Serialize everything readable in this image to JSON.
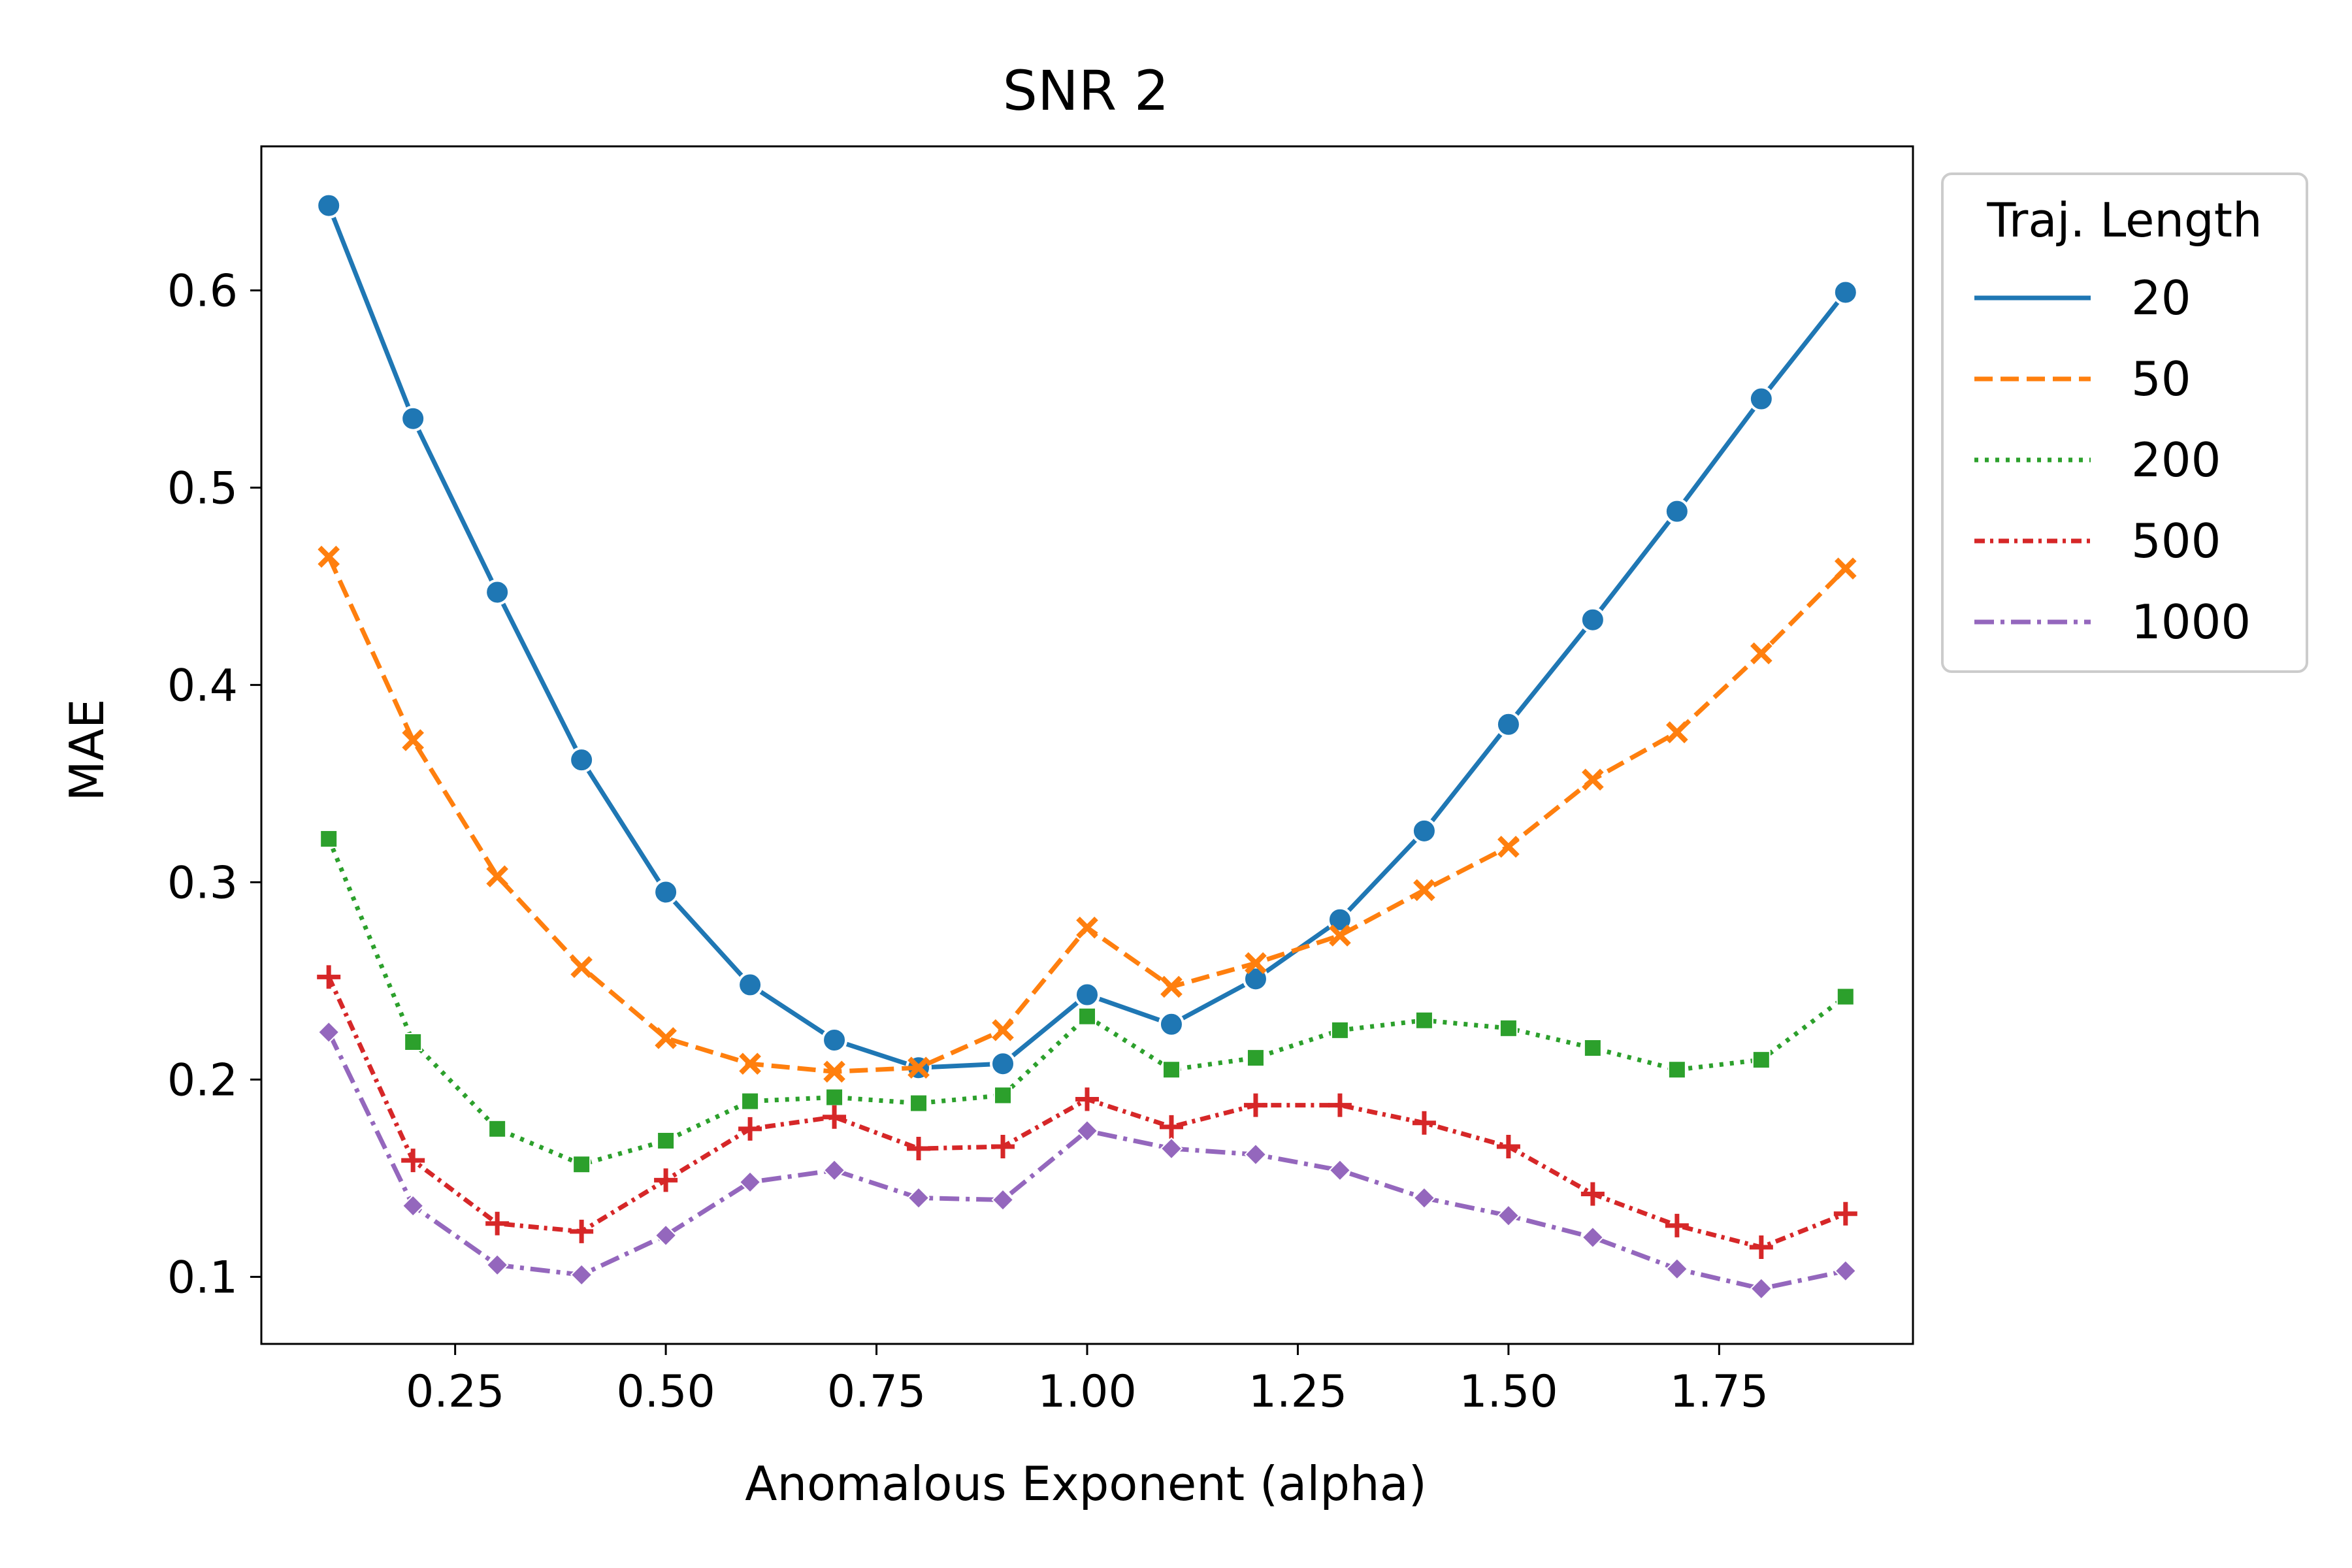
{
  "chart_data": {
    "type": "line",
    "title": "SNR 2",
    "xlabel": "Anomalous Exponent (alpha)",
    "ylabel": "MAE",
    "xlim": [
      0.02,
      1.98
    ],
    "ylim": [
      0.066,
      0.673
    ],
    "xticks": [
      0.25,
      0.5,
      0.75,
      1.0,
      1.25,
      1.5,
      1.75
    ],
    "xtick_labels": [
      "0.25",
      "0.50",
      "0.75",
      "1.00",
      "1.25",
      "1.50",
      "1.75"
    ],
    "yticks": [
      0.1,
      0.2,
      0.3,
      0.4,
      0.5,
      0.6
    ],
    "ytick_labels": [
      "0.1",
      "0.2",
      "0.3",
      "0.4",
      "0.5",
      "0.6"
    ],
    "x": [
      0.1,
      0.2,
      0.3,
      0.4,
      0.5,
      0.6,
      0.7,
      0.8,
      0.9,
      1.0,
      1.1,
      1.2,
      1.3,
      1.4,
      1.5,
      1.6,
      1.7,
      1.8,
      1.9
    ],
    "legend": {
      "title": "Traj. Length",
      "position": "outside-right-top"
    },
    "grid": false,
    "series": [
      {
        "name": "20",
        "color": "#1f77b4",
        "dash": "solid",
        "marker": "circle",
        "values": [
          0.643,
          0.535,
          0.447,
          0.362,
          0.295,
          0.248,
          0.22,
          0.206,
          0.208,
          0.243,
          0.228,
          0.251,
          0.281,
          0.326,
          0.38,
          0.433,
          0.488,
          0.545,
          0.599
        ]
      },
      {
        "name": "50",
        "color": "#ff7f0e",
        "dash": "dashed",
        "marker": "x",
        "values": [
          0.465,
          0.372,
          0.303,
          0.257,
          0.221,
          0.208,
          0.204,
          0.206,
          0.225,
          0.277,
          0.247,
          0.259,
          0.273,
          0.296,
          0.318,
          0.352,
          0.376,
          0.416,
          0.459
        ]
      },
      {
        "name": "200",
        "color": "#2ca02c",
        "dash": "dotted",
        "marker": "square",
        "values": [
          0.322,
          0.219,
          0.175,
          0.157,
          0.169,
          0.189,
          0.191,
          0.188,
          0.192,
          0.232,
          0.205,
          0.211,
          0.225,
          0.23,
          0.226,
          0.216,
          0.205,
          0.21,
          0.242
        ]
      },
      {
        "name": "500",
        "color": "#d62728",
        "dash": "dashdot-dense",
        "marker": "plus",
        "values": [
          0.252,
          0.159,
          0.127,
          0.123,
          0.149,
          0.175,
          0.181,
          0.165,
          0.166,
          0.19,
          0.176,
          0.187,
          0.187,
          0.178,
          0.166,
          0.142,
          0.126,
          0.115,
          0.132
        ]
      },
      {
        "name": "1000",
        "color": "#9467bd",
        "dash": "dashdot",
        "marker": "diamond",
        "values": [
          0.224,
          0.136,
          0.106,
          0.101,
          0.121,
          0.148,
          0.154,
          0.14,
          0.139,
          0.174,
          0.165,
          0.162,
          0.154,
          0.14,
          0.131,
          0.12,
          0.104,
          0.094,
          0.103
        ]
      }
    ]
  }
}
